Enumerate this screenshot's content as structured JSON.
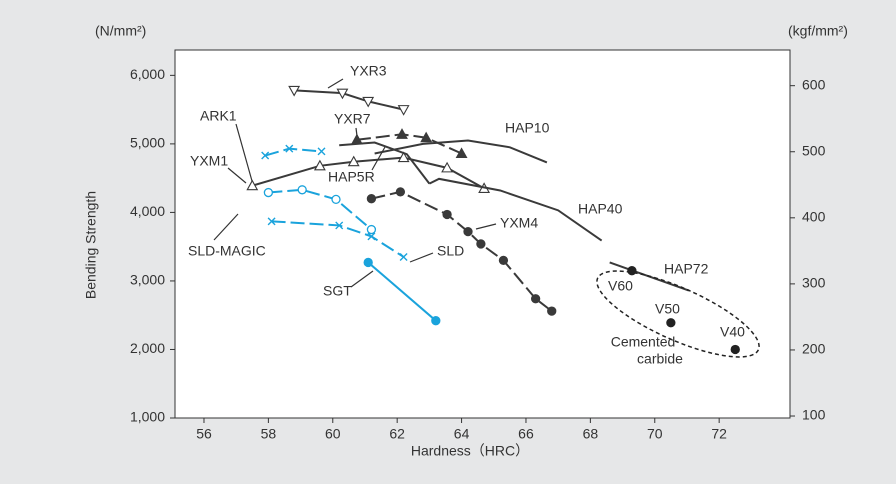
{
  "chart_data": {
    "type": "line",
    "y_unit_label": "(N/mm²)",
    "y2_unit_label": "(kgf/mm²)",
    "ylabel": "Bending Strength",
    "xlabel": "Hardness（HRC）",
    "xlim": [
      55.1,
      74.2
    ],
    "xticks": [
      56,
      58,
      60,
      62,
      64,
      66,
      68,
      70,
      72
    ],
    "ylim": [
      1000,
      6370
    ],
    "yticks": [
      {
        "value": 1000,
        "label": "1,000"
      },
      {
        "value": 2000,
        "label": "2,000"
      },
      {
        "value": 3000,
        "label": "3,000"
      },
      {
        "value": 4000,
        "label": "4,000"
      },
      {
        "value": 5000,
        "label": "5,000"
      },
      {
        "value": 6000,
        "label": "6,000"
      }
    ],
    "y2lim": [
      97,
      654
    ],
    "y2ticks": [
      100,
      200,
      300,
      400,
      500,
      600
    ],
    "series": [
      {
        "name": "YXR3",
        "color": "#3a3a3a",
        "marker": "triangle-down-open",
        "dashed": false,
        "x": [
          58.8,
          60.3,
          61.1,
          62.2
        ],
        "values": [
          5780,
          5740,
          5620,
          5500
        ]
      },
      {
        "name": "YXR7",
        "color": "#3a3a3a",
        "marker": "triangle-up-filled",
        "dashed": true,
        "x": [
          60.75,
          62.15,
          62.9,
          64.0
        ],
        "values": [
          5060,
          5140,
          5090,
          4860
        ]
      },
      {
        "name": "ARK1",
        "color": "#3a3a3a",
        "marker": "triangle-up-open",
        "dashed": false,
        "x": [
          57.5,
          59.6,
          60.65,
          62.2,
          63.55,
          64.7
        ],
        "values": [
          4390,
          4680,
          4740,
          4800,
          4650,
          4350
        ]
      },
      {
        "name": "HAP5R",
        "color": "#3a3a3a",
        "marker": "none",
        "dashed": false,
        "x": [
          60.2,
          61.3,
          62.3,
          63.0
        ],
        "values": [
          4980,
          5020,
          4850,
          4420
        ]
      },
      {
        "name": "HAP10",
        "color": "#3a3a3a",
        "marker": "none",
        "dashed": false,
        "x": [
          61.3,
          62.8,
          64.2,
          65.5,
          66.65
        ],
        "values": [
          4860,
          5000,
          5050,
          4950,
          4730
        ]
      },
      {
        "name": "HAP40",
        "color": "#3a3a3a",
        "marker": "none",
        "dashed": false,
        "x": [
          63.0,
          63.3,
          65.2,
          67.0,
          68.35
        ],
        "values": [
          4420,
          4490,
          4320,
          4030,
          3590
        ]
      },
      {
        "name": "HAP72",
        "color": "#3a3a3a",
        "marker": "none",
        "dashed": false,
        "x": [
          68.6,
          71.06
        ],
        "values": [
          3270,
          2860
        ]
      },
      {
        "name": "YXM4",
        "color": "#3a3a3a",
        "marker": "circle-filled",
        "dashed": true,
        "x": [
          61.2,
          62.1,
          63.55,
          64.2,
          64.6,
          65.3,
          66.3,
          66.8
        ],
        "values": [
          4200,
          4300,
          3970,
          3720,
          3540,
          3300,
          2740,
          2560
        ]
      },
      {
        "name": "YXM1",
        "color": "#1aa3dc",
        "marker": "x",
        "dashed": true,
        "x": [
          57.9,
          58.65,
          59.65
        ],
        "values": [
          4830,
          4930,
          4890
        ]
      },
      {
        "name": "SLD-MAGIC",
        "color": "#1aa3dc",
        "marker": "circle-open",
        "dashed": true,
        "x": [
          58.0,
          59.05,
          60.1,
          61.2
        ],
        "values": [
          4290,
          4330,
          4190,
          3750
        ]
      },
      {
        "name": "SLD",
        "color": "#1aa3dc",
        "marker": "x",
        "dashed": true,
        "x": [
          58.1,
          60.2,
          61.2,
          62.2
        ],
        "values": [
          3870,
          3810,
          3650,
          3350
        ]
      },
      {
        "name": "SGT",
        "color": "#1aa3dc",
        "marker": "circle-filled",
        "dashed": false,
        "x": [
          61.1,
          63.2
        ],
        "values": [
          3270,
          2420
        ]
      },
      {
        "name": "Cemented carbide",
        "color": "#222222",
        "marker": "circle-filled",
        "dashed": false,
        "no_line": true,
        "x": [
          69.29,
          70.5,
          72.5
        ],
        "values": [
          3150,
          2390,
          2000
        ],
        "point_labels": [
          "V60",
          "V50",
          "V40"
        ]
      }
    ],
    "carbide_label": [
      "Cemented",
      "carbide"
    ]
  }
}
